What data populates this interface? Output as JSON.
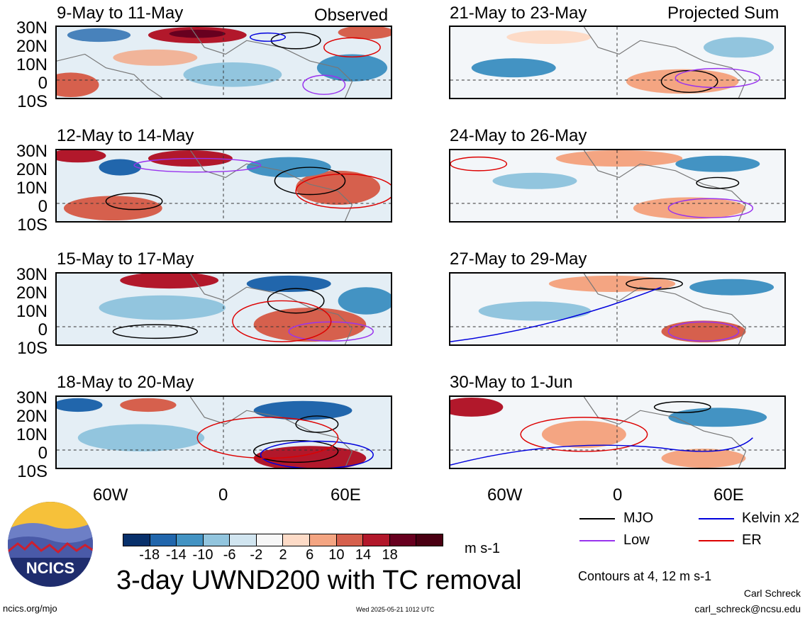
{
  "title": "3-day UWND200 with TC removal",
  "left_column_tag": "Observed",
  "right_column_tag": "Projected Sum",
  "panels_left": [
    {
      "label": "9-May to 11-May"
    },
    {
      "label": "12-May to 14-May"
    },
    {
      "label": "15-May to 17-May"
    },
    {
      "label": "18-May to 20-May"
    }
  ],
  "panels_right": [
    {
      "label": "21-May to 23-May"
    },
    {
      "label": "24-May to 26-May"
    },
    {
      "label": "27-May to 29-May"
    },
    {
      "label": "30-May to 1-Jun"
    }
  ],
  "lat_labels": [
    "30N",
    "20N",
    "10N",
    "0",
    "10S"
  ],
  "lon_labels": [
    "60W",
    "0",
    "60E"
  ],
  "colorbar": {
    "colors": [
      "#08306b",
      "#2166ac",
      "#4393c3",
      "#92c5de",
      "#d1e5f0",
      "#f7f7f7",
      "#fddbc7",
      "#f4a582",
      "#d6604d",
      "#b2182b",
      "#67001f",
      "#4a0012"
    ],
    "ticks": [
      "-18",
      "-14",
      "-10",
      "-6",
      "-2",
      "2",
      "6",
      "10",
      "14",
      "18"
    ],
    "units": "m s-1"
  },
  "legend": {
    "mjo": {
      "label": "MJO",
      "color": "#000000"
    },
    "kelvin": {
      "label": "Kelvin x2",
      "color": "#0000dd"
    },
    "low": {
      "label": "Low",
      "color": "#9933ee"
    },
    "er": {
      "label": "ER",
      "color": "#dd0000"
    },
    "contours": "Contours at 4, 12 m s-1"
  },
  "logo_text": "NCICS",
  "author": {
    "name": "Carl Schreck",
    "email": "carl_schreck@ncsu.edu"
  },
  "footer": {
    "url": "ncics.org/mjo",
    "timestamp": "Wed 2025-05-21 1012 UTC"
  }
}
